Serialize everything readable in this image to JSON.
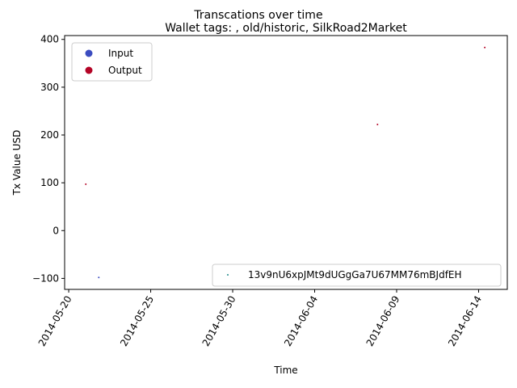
{
  "chart_data": {
    "type": "scatter",
    "suptitle": "Transcations over time",
    "title": "Wallet tags: , old/historic, SilkRoad2Market",
    "xlabel": "Time",
    "ylabel": "Tx Value USD",
    "xlim": [
      "2014-05-19T18:00",
      "2014-06-15T18:00"
    ],
    "ylim": [
      -123,
      408
    ],
    "x_ticks": [
      "2014-05-20",
      "2014-05-25",
      "2014-05-30",
      "2014-06-04",
      "2014-06-09",
      "2014-06-14"
    ],
    "y_ticks": [
      -100,
      0,
      100,
      200,
      300,
      400
    ],
    "grid": false,
    "colors": {
      "input": "#3b4cc0",
      "output": "#b40426",
      "address": "#1f8a8a"
    },
    "points": [
      {
        "date": "2014-05-21T01:00",
        "value": 97,
        "type": "Output"
      },
      {
        "date": "2014-05-21T20:00",
        "value": -98,
        "type": "Input"
      },
      {
        "date": "2014-06-07T20:00",
        "value": 222,
        "type": "Output"
      },
      {
        "date": "2014-06-14T09:00",
        "value": 383,
        "type": "Output"
      }
    ],
    "legend_type": {
      "placement": "upper-left",
      "entries": [
        {
          "label": "Input",
          "color": "#3b4cc0"
        },
        {
          "label": "Output",
          "color": "#b40426"
        }
      ]
    },
    "legend_address": {
      "placement": "lower-right",
      "entries": [
        {
          "label": "13v9nU6xpJMt9dUGgGa7U67MM76mBJdfEH",
          "color": "#1f8a8a"
        }
      ]
    }
  }
}
